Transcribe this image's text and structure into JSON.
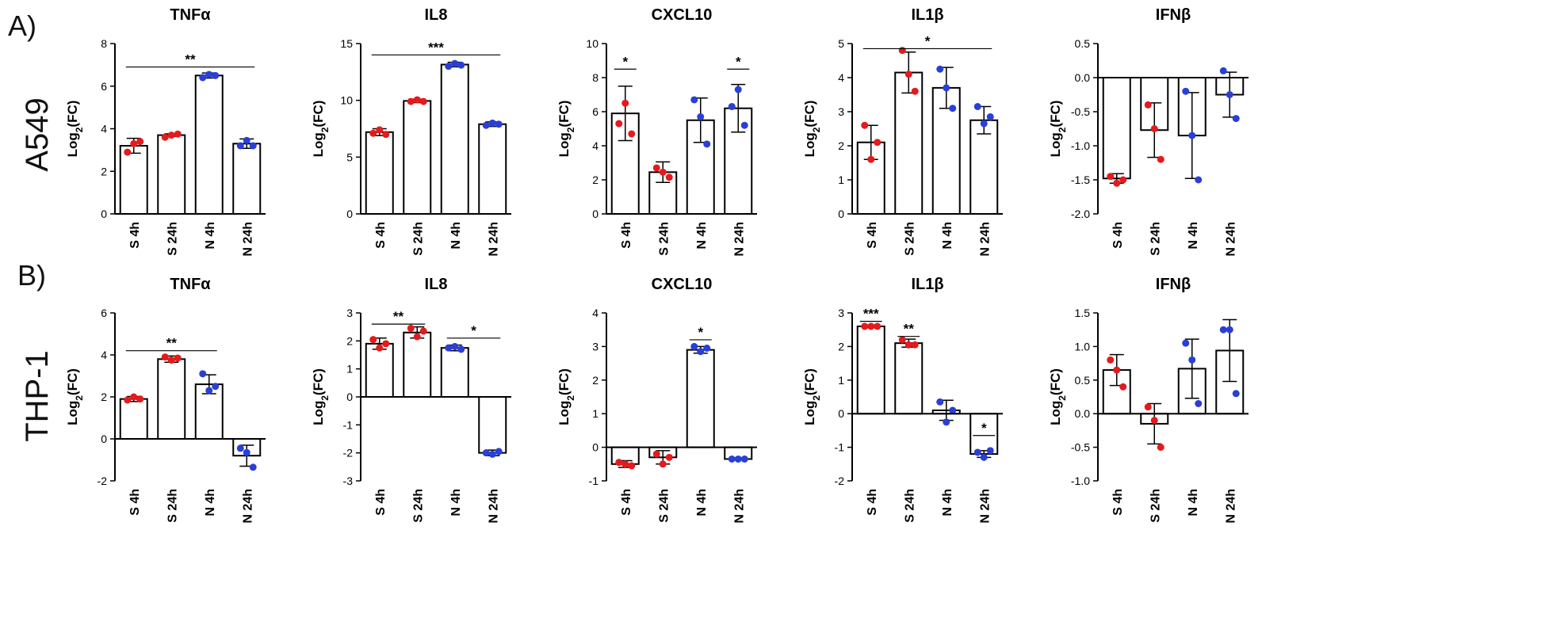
{
  "row_labels": [
    {
      "letter": "A)",
      "cell_line": "A549"
    },
    {
      "letter": "B)",
      "cell_line": "THP-1"
    }
  ],
  "colors": {
    "S": "#e41a1c",
    "N": "#2a3fd6",
    "bar_fill": "#ffffff",
    "axis": "#000000"
  },
  "chart_data": [
    {
      "type": "bar",
      "row": 0,
      "title": "TNFα",
      "ylabel_main": "Log",
      "ylabel_sub": "2",
      "ylabel_tail": "(FC)",
      "ylim": [
        0,
        8
      ],
      "yticks": [
        0,
        2,
        4,
        6,
        8
      ],
      "yticklabels": [
        "0",
        "2",
        "4",
        "6",
        "8"
      ],
      "categories": [
        "S 4h",
        "S 24h",
        "N 4h",
        "N 24h"
      ],
      "groups": [
        "S",
        "S",
        "N",
        "N"
      ],
      "values": [
        3.2,
        3.7,
        6.5,
        3.3
      ],
      "err": [
        0.35,
        0.06,
        0.12,
        0.22
      ],
      "points": [
        [
          2.9,
          3.3,
          3.4
        ],
        [
          3.6,
          3.7,
          3.75
        ],
        [
          6.4,
          6.55,
          6.5
        ],
        [
          3.2,
          3.45,
          3.2
        ]
      ],
      "sig": [
        {
          "from": 0,
          "to": 3,
          "y": 6.9,
          "label": "**"
        }
      ]
    },
    {
      "type": "bar",
      "row": 0,
      "title": "IL8",
      "ylabel_main": "Log",
      "ylabel_sub": "2",
      "ylabel_tail": "(FC)",
      "ylim": [
        0,
        15
      ],
      "yticks": [
        0,
        5,
        10,
        15
      ],
      "yticklabels": [
        "0",
        "5",
        "10",
        "15"
      ],
      "categories": [
        "S 4h",
        "S 24h",
        "N 4h",
        "N 24h"
      ],
      "groups": [
        "S",
        "S",
        "N",
        "N"
      ],
      "values": [
        7.2,
        9.95,
        13.15,
        7.9
      ],
      "err": [
        0.3,
        0.15,
        0.2,
        0.2
      ],
      "points": [
        [
          7.1,
          7.4,
          7.0
        ],
        [
          9.9,
          10.05,
          9.9
        ],
        [
          13.0,
          13.25,
          13.1
        ],
        [
          7.8,
          8.0,
          7.9
        ]
      ],
      "sig": [
        {
          "from": 0,
          "to": 3,
          "y": 14.0,
          "label": "***"
        }
      ]
    },
    {
      "type": "bar",
      "row": 0,
      "title": "CXCL10",
      "ylabel_main": "Log",
      "ylabel_sub": "2",
      "ylabel_tail": "(FC)",
      "ylim": [
        0,
        10
      ],
      "yticks": [
        0,
        2,
        4,
        6,
        8,
        10
      ],
      "yticklabels": [
        "0",
        "2",
        "4",
        "6",
        "8",
        "10"
      ],
      "categories": [
        "S 4h",
        "S 24h",
        "N 4h",
        "N 24h"
      ],
      "groups": [
        "S",
        "S",
        "N",
        "N"
      ],
      "values": [
        5.9,
        2.45,
        5.5,
        6.2
      ],
      "err": [
        1.6,
        0.6,
        1.3,
        1.4
      ],
      "points": [
        [
          5.3,
          6.5,
          4.7
        ],
        [
          2.7,
          2.45,
          2.15
        ],
        [
          6.7,
          5.7,
          4.1
        ],
        [
          6.3,
          7.3,
          5.2
        ]
      ],
      "sig": [
        {
          "from": 0,
          "to": 0,
          "y": 8.5,
          "label": "*"
        },
        {
          "from": 3,
          "to": 3,
          "y": 8.5,
          "label": "*"
        }
      ]
    },
    {
      "type": "bar",
      "row": 0,
      "title": "IL1β",
      "ylabel_main": "Log",
      "ylabel_sub": "2",
      "ylabel_tail": "(FC)",
      "ylim": [
        0,
        5
      ],
      "yticks": [
        0,
        1,
        2,
        3,
        4,
        5
      ],
      "yticklabels": [
        "0",
        "1",
        "2",
        "3",
        "4",
        "5"
      ],
      "categories": [
        "S 4h",
        "S 24h",
        "N 4h",
        "N 24h"
      ],
      "groups": [
        "S",
        "S",
        "N",
        "N"
      ],
      "values": [
        2.1,
        4.15,
        3.7,
        2.75
      ],
      "err": [
        0.5,
        0.6,
        0.6,
        0.4
      ],
      "points": [
        [
          2.6,
          1.6,
          2.1
        ],
        [
          4.8,
          4.1,
          3.6
        ],
        [
          4.25,
          3.7,
          3.1
        ],
        [
          3.15,
          2.65,
          2.85
        ]
      ],
      "sig": [
        {
          "from": 0,
          "to": 3,
          "y": 4.85,
          "label": "*"
        }
      ]
    },
    {
      "type": "bar",
      "row": 0,
      "title": "IFNβ",
      "ylabel_main": "Log",
      "ylabel_sub": "2",
      "ylabel_tail": "(FC)",
      "ylim": [
        -2,
        0.5
      ],
      "yticks": [
        -2,
        -1.5,
        -1,
        -0.5,
        0,
        0.5
      ],
      "yticklabels": [
        "-2.0",
        "-1.5",
        "-1.0",
        "-0.5",
        "0.0",
        "0.5"
      ],
      "categories": [
        "S 4h",
        "S 24h",
        "N 4h",
        "N 24h"
      ],
      "groups": [
        "S",
        "S",
        "N",
        "N"
      ],
      "values": [
        -1.48,
        -0.77,
        -0.85,
        -0.25
      ],
      "err": [
        0.07,
        0.4,
        0.63,
        0.33
      ],
      "points": [
        [
          -1.45,
          -1.55,
          -1.5
        ],
        [
          -0.4,
          -0.75,
          -1.2
        ],
        [
          -0.2,
          -0.85,
          -1.5
        ],
        [
          0.1,
          -0.25,
          -0.6
        ]
      ],
      "sig": []
    },
    {
      "type": "bar",
      "row": 1,
      "title": "TNFα",
      "ylabel_main": "Log",
      "ylabel_sub": "2",
      "ylabel_tail": "(FC)",
      "ylim": [
        -2,
        6
      ],
      "yticks": [
        -2,
        0,
        2,
        4,
        6
      ],
      "yticklabels": [
        "-2",
        "0",
        "2",
        "4",
        "6"
      ],
      "categories": [
        "S 4h",
        "S 24h",
        "N 4h",
        "N 24h"
      ],
      "groups": [
        "S",
        "S",
        "N",
        "N"
      ],
      "values": [
        1.9,
        3.8,
        2.6,
        -0.8
      ],
      "err": [
        0.12,
        0.15,
        0.45,
        0.5
      ],
      "points": [
        [
          1.85,
          2.0,
          1.9
        ],
        [
          3.9,
          3.75,
          3.85
        ],
        [
          3.1,
          2.3,
          2.5
        ],
        [
          -0.45,
          -0.65,
          -1.35
        ]
      ],
      "sig": [
        {
          "from": 0,
          "to": 2,
          "y": 4.2,
          "label": "**"
        }
      ]
    },
    {
      "type": "bar",
      "row": 1,
      "title": "IL8",
      "ylabel_main": "Log",
      "ylabel_sub": "2",
      "ylabel_tail": "(FC)",
      "ylim": [
        -3,
        3
      ],
      "yticks": [
        -3,
        -2,
        -1,
        0,
        1,
        2,
        3
      ],
      "yticklabels": [
        "-3",
        "-2",
        "-1",
        "0",
        "1",
        "2",
        "3"
      ],
      "categories": [
        "S 4h",
        "S 24h",
        "N 4h",
        "N 24h"
      ],
      "groups": [
        "S",
        "S",
        "N",
        "N"
      ],
      "values": [
        1.9,
        2.3,
        1.75,
        -2.0
      ],
      "err": [
        0.2,
        0.2,
        0.1,
        0.1
      ],
      "points": [
        [
          2.05,
          1.75,
          1.9
        ],
        [
          2.45,
          2.15,
          2.35
        ],
        [
          1.75,
          1.8,
          1.7
        ],
        [
          -2.0,
          -2.05,
          -1.95
        ]
      ],
      "sig": [
        {
          "from": 0,
          "to": 1,
          "y": 2.6,
          "label": "**"
        },
        {
          "from": 2,
          "to": 3,
          "y": 2.1,
          "label": "*"
        }
      ]
    },
    {
      "type": "bar",
      "row": 1,
      "title": "CXCL10",
      "ylabel_main": "Log",
      "ylabel_sub": "2",
      "ylabel_tail": "(FC)",
      "ylim": [
        -1,
        4
      ],
      "yticks": [
        -1,
        0,
        1,
        2,
        3,
        4
      ],
      "yticklabels": [
        "-1",
        "0",
        "1",
        "2",
        "3",
        "4"
      ],
      "categories": [
        "S 4h",
        "S 24h",
        "N 4h",
        "N 24h"
      ],
      "groups": [
        "S",
        "S",
        "N",
        "N"
      ],
      "values": [
        -0.5,
        -0.3,
        2.9,
        -0.35
      ],
      "err": [
        0.1,
        0.2,
        0.1,
        0.03
      ],
      "points": [
        [
          -0.45,
          -0.5,
          -0.55
        ],
        [
          -0.2,
          -0.5,
          -0.3
        ],
        [
          3.0,
          2.85,
          2.95
        ],
        [
          -0.35,
          -0.35,
          -0.35
        ]
      ],
      "sig": [
        {
          "from": 2,
          "to": 2,
          "y": 3.2,
          "label": "*"
        }
      ]
    },
    {
      "type": "bar",
      "row": 1,
      "title": "IL1β",
      "ylabel_main": "Log",
      "ylabel_sub": "2",
      "ylabel_tail": "(FC)",
      "ylim": [
        -2,
        3
      ],
      "yticks": [
        -2,
        -1,
        0,
        1,
        2,
        3
      ],
      "yticklabels": [
        "-2",
        "-1",
        "0",
        "1",
        "2",
        "3"
      ],
      "categories": [
        "S 4h",
        "S 24h",
        "N 4h",
        "N 24h"
      ],
      "groups": [
        "S",
        "S",
        "N",
        "N"
      ],
      "values": [
        2.6,
        2.1,
        0.1,
        -1.2
      ],
      "err": [
        0.04,
        0.12,
        0.3,
        0.1
      ],
      "points": [
        [
          2.6,
          2.6,
          2.6
        ],
        [
          2.2,
          2.05,
          2.05
        ],
        [
          0.35,
          -0.25,
          0.1
        ],
        [
          -1.15,
          -1.3,
          -1.1
        ]
      ],
      "sig": [
        {
          "from": 0,
          "to": 0,
          "y": 2.75,
          "label": "***"
        },
        {
          "from": 1,
          "to": 1,
          "y": 2.3,
          "label": "**"
        },
        {
          "from": 3,
          "to": 3,
          "y": -0.65,
          "label": "*"
        }
      ]
    },
    {
      "type": "bar",
      "row": 1,
      "title": "IFNβ",
      "ylabel_main": "Log",
      "ylabel_sub": "2",
      "ylabel_tail": "(FC)",
      "ylim": [
        -1,
        1.5
      ],
      "yticks": [
        -1,
        -0.5,
        0,
        0.5,
        1,
        1.5
      ],
      "yticklabels": [
        "-1.0",
        "-0.5",
        "0.0",
        "0.5",
        "1.0",
        "1.5"
      ],
      "categories": [
        "S 4h",
        "S 24h",
        "N 4h",
        "N 24h"
      ],
      "groups": [
        "S",
        "S",
        "N",
        "N"
      ],
      "values": [
        0.65,
        -0.15,
        0.67,
        0.94
      ],
      "err": [
        0.23,
        0.3,
        0.44,
        0.46
      ],
      "points": [
        [
          0.8,
          0.65,
          0.4
        ],
        [
          0.1,
          -0.1,
          -0.5
        ],
        [
          1.05,
          0.8,
          0.15
        ],
        [
          1.25,
          1.25,
          0.3
        ]
      ],
      "sig": []
    }
  ]
}
